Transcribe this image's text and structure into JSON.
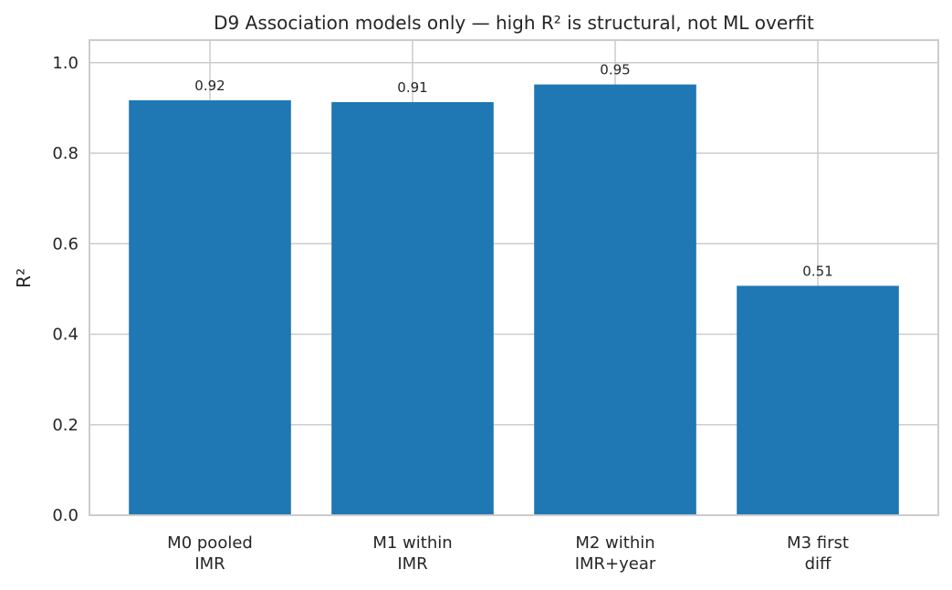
{
  "chart_data": {
    "type": "bar",
    "title": "D9 Association models only — high R² is structural, not ML overfit",
    "xlabel": "",
    "ylabel": "R²",
    "categories": [
      [
        "M0 pooled",
        "IMR"
      ],
      [
        "M1 within",
        "IMR"
      ],
      [
        "M2 within",
        "IMR+year"
      ],
      [
        "M3 first",
        "diff"
      ]
    ],
    "values": [
      0.917,
      0.913,
      0.952,
      0.507
    ],
    "data_labels": [
      "0.92",
      "0.91",
      "0.95",
      "0.51"
    ],
    "ylim": [
      0,
      1.05
    ],
    "yticks": [
      0.0,
      0.2,
      0.4,
      0.6,
      0.8,
      1.0
    ],
    "ytick_labels": [
      "0.0",
      "0.2",
      "0.4",
      "0.6",
      "0.8",
      "1.0"
    ],
    "grid": true,
    "legend": false,
    "colors": {
      "bar": "#1f77b4",
      "grid": "#cccccc",
      "text": "#262626"
    }
  }
}
